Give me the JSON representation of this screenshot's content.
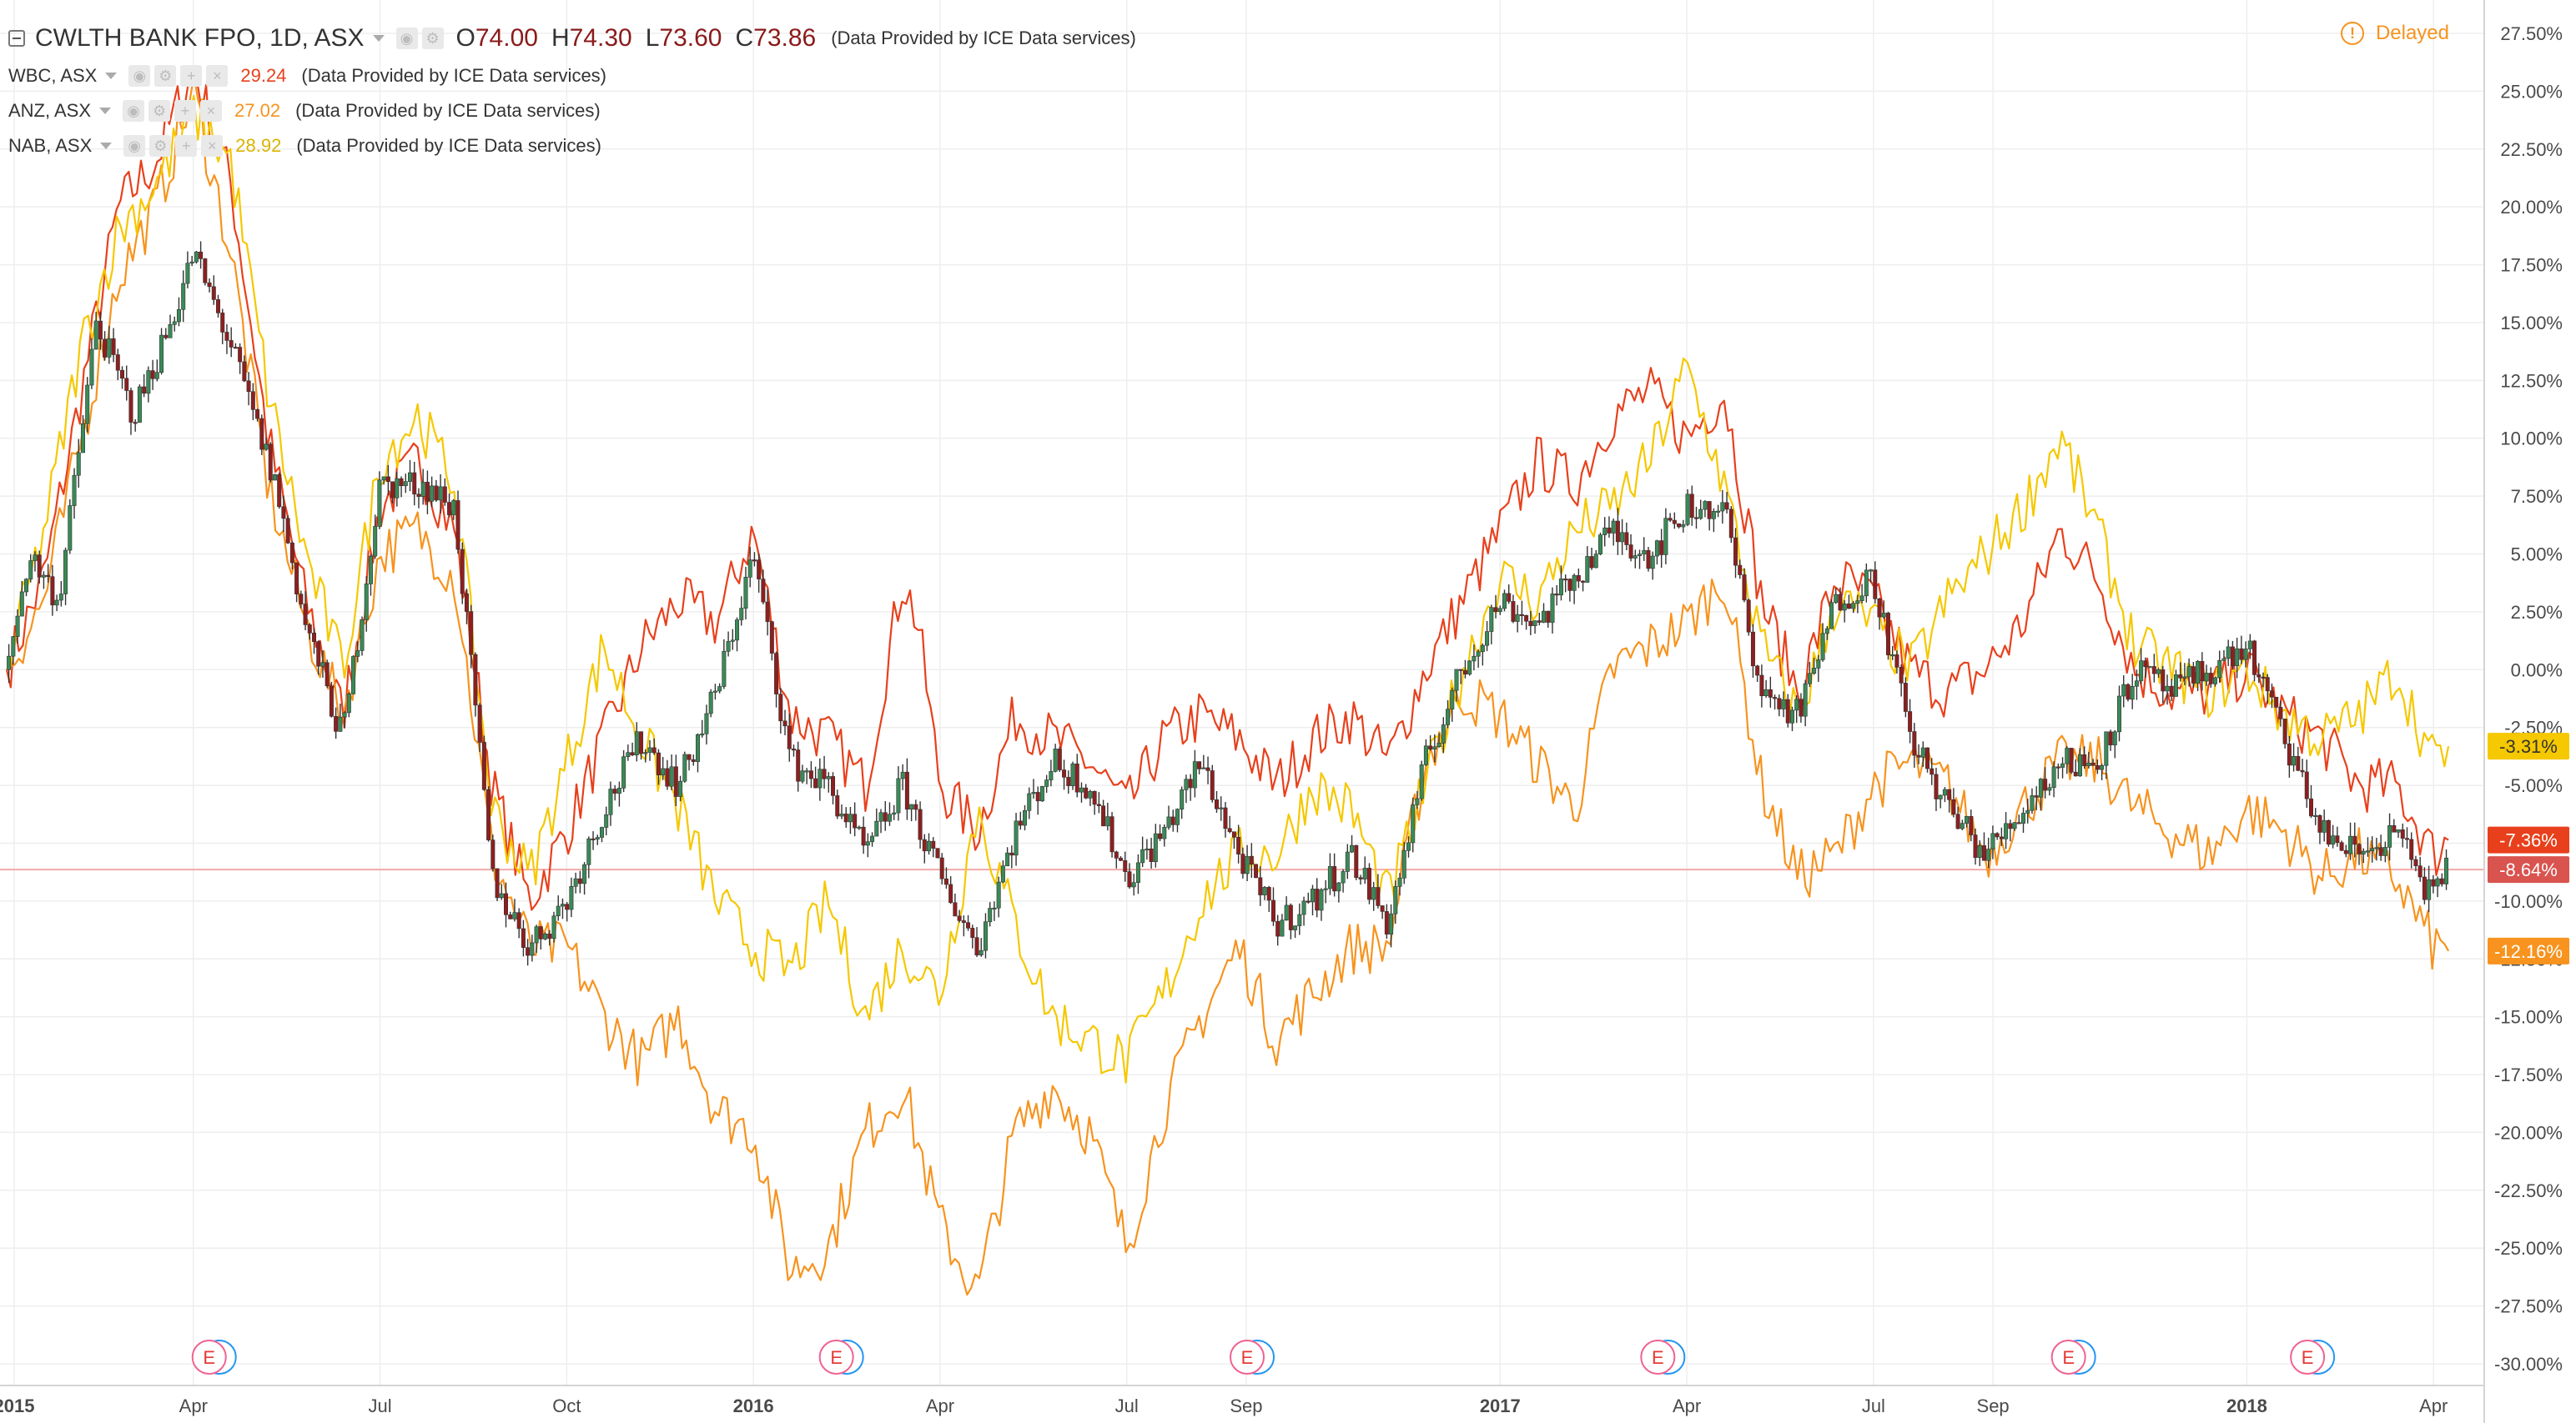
{
  "header": {
    "main": {
      "symbol": "CWLTH BANK FPO, 1D, ASX",
      "open_label": "O",
      "open": "74.00",
      "high_label": "H",
      "high": "74.30",
      "low_label": "L",
      "low": "73.60",
      "close_label": "C",
      "close": "73.86",
      "provider": "(Data Provided by ICE Data services)"
    },
    "comparisons": [
      {
        "symbol": "WBC, ASX",
        "value": "29.24",
        "color": "#e8401c",
        "provider": "(Data Provided by ICE Data services)"
      },
      {
        "symbol": "ANZ, ASX",
        "value": "27.02",
        "color": "#f7931e",
        "provider": "(Data Provided by ICE Data services)"
      },
      {
        "symbol": "NAB, ASX",
        "value": "28.92",
        "color": "#f5c800",
        "provider": "(Data Provided by ICE Data services)"
      }
    ],
    "delayed_label": "Delayed",
    "delayed_icon": "!"
  },
  "chart_data": {
    "type": "line",
    "ylim": [
      -30,
      27.5
    ],
    "y_ticks": [
      "27.50%",
      "25.00%",
      "22.50%",
      "20.00%",
      "17.50%",
      "15.00%",
      "12.50%",
      "10.00%",
      "7.50%",
      "5.00%",
      "2.50%",
      "0.00%",
      "-2.50%",
      "-5.00%",
      "-7.50%",
      "-10.00%",
      "-12.50%",
      "-15.00%",
      "-17.50%",
      "-20.00%",
      "-22.50%",
      "-25.00%",
      "-27.50%",
      "-30.00%"
    ],
    "x_ticks": [
      {
        "label": "2015",
        "t": 0.01,
        "bold": true
      },
      {
        "label": "Apr",
        "t": 0.25,
        "bold": false
      },
      {
        "label": "Jul",
        "t": 0.5,
        "bold": false
      },
      {
        "label": "Oct",
        "t": 0.75,
        "bold": false
      },
      {
        "label": "2016",
        "t": 1.0,
        "bold": true
      },
      {
        "label": "Apr",
        "t": 1.25,
        "bold": false
      },
      {
        "label": "Jul",
        "t": 1.5,
        "bold": false
      },
      {
        "label": "Sep",
        "t": 1.66,
        "bold": false
      },
      {
        "label": "2017",
        "t": 2.0,
        "bold": true
      },
      {
        "label": "Apr",
        "t": 2.25,
        "bold": false
      },
      {
        "label": "Jul",
        "t": 2.5,
        "bold": false
      },
      {
        "label": "Sep",
        "t": 2.66,
        "bold": false
      },
      {
        "label": "2018",
        "t": 3.0,
        "bold": true
      },
      {
        "label": "Apr",
        "t": 3.25,
        "bold": false
      }
    ],
    "current_level": -8.64,
    "series": [
      {
        "name": "CWLTH BANK FPO, 1D, ASX",
        "style": "candles",
        "label": "-8.64%",
        "last": -8.64,
        "label_color": "#d9534f",
        "points": [
          [
            0,
            0
          ],
          [
            0.03,
            5
          ],
          [
            0.07,
            3
          ],
          [
            0.12,
            15
          ],
          [
            0.17,
            11
          ],
          [
            0.22,
            15
          ],
          [
            0.25,
            18
          ],
          [
            0.3,
            14
          ],
          [
            0.36,
            8
          ],
          [
            0.4,
            2
          ],
          [
            0.45,
            -3
          ],
          [
            0.5,
            8
          ],
          [
            0.56,
            8
          ],
          [
            0.6,
            7
          ],
          [
            0.65,
            -9
          ],
          [
            0.7,
            -12
          ],
          [
            0.75,
            -10
          ],
          [
            0.8,
            -6
          ],
          [
            0.85,
            -3
          ],
          [
            0.9,
            -5
          ],
          [
            0.95,
            -1
          ],
          [
            1.0,
            5
          ],
          [
            1.05,
            -4
          ],
          [
            1.1,
            -5
          ],
          [
            1.15,
            -8
          ],
          [
            1.2,
            -5
          ],
          [
            1.25,
            -9
          ],
          [
            1.3,
            -12
          ],
          [
            1.35,
            -7
          ],
          [
            1.4,
            -4
          ],
          [
            1.45,
            -5
          ],
          [
            1.5,
            -9
          ],
          [
            1.55,
            -7
          ],
          [
            1.6,
            -4
          ],
          [
            1.65,
            -8
          ],
          [
            1.7,
            -11
          ],
          [
            1.75,
            -10
          ],
          [
            1.8,
            -8
          ],
          [
            1.85,
            -11
          ],
          [
            1.9,
            -4
          ],
          [
            1.95,
            0
          ],
          [
            2.0,
            3
          ],
          [
            2.05,
            2
          ],
          [
            2.1,
            4
          ],
          [
            2.15,
            6
          ],
          [
            2.2,
            5
          ],
          [
            2.25,
            7
          ],
          [
            2.3,
            7
          ],
          [
            2.35,
            -1
          ],
          [
            2.4,
            -2
          ],
          [
            2.45,
            3
          ],
          [
            2.5,
            4
          ],
          [
            2.55,
            -3
          ],
          [
            2.6,
            -6
          ],
          [
            2.65,
            -8
          ],
          [
            2.7,
            -6
          ],
          [
            2.75,
            -4
          ],
          [
            2.8,
            -4
          ],
          [
            2.85,
            0
          ],
          [
            2.9,
            -1
          ],
          [
            2.95,
            0
          ],
          [
            3.0,
            1
          ],
          [
            3.05,
            -3
          ],
          [
            3.1,
            -7
          ],
          [
            3.15,
            -8
          ],
          [
            3.2,
            -7
          ],
          [
            3.25,
            -10
          ],
          [
            3.27,
            -8.64
          ]
        ]
      },
      {
        "name": "WBC, ASX",
        "style": "line",
        "label": "-7.36%",
        "last": -7.36,
        "color": "#e8401c",
        "points": [
          [
            0,
            0
          ],
          [
            0.05,
            4
          ],
          [
            0.1,
            12
          ],
          [
            0.15,
            20
          ],
          [
            0.2,
            22
          ],
          [
            0.25,
            26
          ],
          [
            0.3,
            21
          ],
          [
            0.35,
            10
          ],
          [
            0.4,
            3
          ],
          [
            0.45,
            -2
          ],
          [
            0.5,
            7
          ],
          [
            0.55,
            9
          ],
          [
            0.6,
            6
          ],
          [
            0.65,
            -5
          ],
          [
            0.7,
            -10
          ],
          [
            0.75,
            -7
          ],
          [
            0.8,
            -3
          ],
          [
            0.85,
            1
          ],
          [
            0.9,
            3
          ],
          [
            0.95,
            2
          ],
          [
            1.0,
            6
          ],
          [
            1.05,
            -2
          ],
          [
            1.1,
            -3
          ],
          [
            1.15,
            -5
          ],
          [
            1.2,
            4
          ],
          [
            1.22,
            2
          ],
          [
            1.25,
            -5
          ],
          [
            1.3,
            -7
          ],
          [
            1.35,
            -2
          ],
          [
            1.4,
            -3
          ],
          [
            1.45,
            -4
          ],
          [
            1.5,
            -6
          ],
          [
            1.55,
            -3
          ],
          [
            1.6,
            -2
          ],
          [
            1.65,
            -3
          ],
          [
            1.7,
            -5
          ],
          [
            1.75,
            -3
          ],
          [
            1.8,
            -2
          ],
          [
            1.85,
            -4
          ],
          [
            1.9,
            0
          ],
          [
            1.95,
            3
          ],
          [
            2.0,
            6
          ],
          [
            2.05,
            9
          ],
          [
            2.1,
            8
          ],
          [
            2.15,
            11
          ],
          [
            2.2,
            12
          ],
          [
            2.25,
            10
          ],
          [
            2.3,
            12
          ],
          [
            2.35,
            3
          ],
          [
            2.4,
            -1
          ],
          [
            2.45,
            4
          ],
          [
            2.5,
            3
          ],
          [
            2.55,
            0
          ],
          [
            2.6,
            -1
          ],
          [
            2.65,
            0
          ],
          [
            2.7,
            2
          ],
          [
            2.75,
            6
          ],
          [
            2.8,
            4
          ],
          [
            2.85,
            0
          ],
          [
            2.9,
            -1
          ],
          [
            2.95,
            -1
          ],
          [
            3.0,
            0
          ],
          [
            3.05,
            -2
          ],
          [
            3.1,
            -3
          ],
          [
            3.15,
            -5
          ],
          [
            3.2,
            -5
          ],
          [
            3.25,
            -8
          ],
          [
            3.27,
            -7.36
          ]
        ]
      },
      {
        "name": "ANZ, ASX",
        "style": "line",
        "label": "-12.16%",
        "last": -12.16,
        "color": "#f7931e",
        "points": [
          [
            0,
            0
          ],
          [
            0.05,
            3
          ],
          [
            0.1,
            10
          ],
          [
            0.15,
            17
          ],
          [
            0.2,
            20
          ],
          [
            0.25,
            25
          ],
          [
            0.3,
            18
          ],
          [
            0.35,
            8
          ],
          [
            0.4,
            2
          ],
          [
            0.45,
            -2
          ],
          [
            0.5,
            5
          ],
          [
            0.55,
            6
          ],
          [
            0.6,
            4
          ],
          [
            0.65,
            -8
          ],
          [
            0.7,
            -12
          ],
          [
            0.75,
            -12
          ],
          [
            0.8,
            -15
          ],
          [
            0.85,
            -17
          ],
          [
            0.9,
            -15
          ],
          [
            0.95,
            -19
          ],
          [
            1.0,
            -20
          ],
          [
            1.05,
            -26
          ],
          [
            1.1,
            -25
          ],
          [
            1.15,
            -20
          ],
          [
            1.2,
            -18
          ],
          [
            1.25,
            -24
          ],
          [
            1.3,
            -27
          ],
          [
            1.35,
            -20
          ],
          [
            1.4,
            -18
          ],
          [
            1.45,
            -20
          ],
          [
            1.5,
            -25
          ],
          [
            1.55,
            -19
          ],
          [
            1.6,
            -15
          ],
          [
            1.65,
            -12
          ],
          [
            1.7,
            -16
          ],
          [
            1.75,
            -14
          ],
          [
            1.8,
            -12
          ],
          [
            1.85,
            -12
          ],
          [
            1.9,
            -4
          ],
          [
            1.95,
            -1
          ],
          [
            2.0,
            -2
          ],
          [
            2.05,
            -4
          ],
          [
            2.1,
            -6
          ],
          [
            2.15,
            0
          ],
          [
            2.2,
            1
          ],
          [
            2.25,
            2
          ],
          [
            2.3,
            4
          ],
          [
            2.35,
            -5
          ],
          [
            2.4,
            -9
          ],
          [
            2.45,
            -8
          ],
          [
            2.5,
            -5
          ],
          [
            2.55,
            -4
          ],
          [
            2.6,
            -5
          ],
          [
            2.65,
            -8
          ],
          [
            2.7,
            -6
          ],
          [
            2.75,
            -4
          ],
          [
            2.8,
            -4
          ],
          [
            2.85,
            -6
          ],
          [
            2.9,
            -7
          ],
          [
            2.95,
            -8
          ],
          [
            3.0,
            -6
          ],
          [
            3.05,
            -7
          ],
          [
            3.1,
            -9
          ],
          [
            3.15,
            -8
          ],
          [
            3.2,
            -9
          ],
          [
            3.25,
            -12
          ],
          [
            3.27,
            -12.16
          ]
        ]
      },
      {
        "name": "NAB, ASX",
        "style": "line",
        "label": "-3.31%",
        "last": -3.31,
        "color": "#f5c800",
        "points": [
          [
            0,
            0
          ],
          [
            0.05,
            6
          ],
          [
            0.1,
            14
          ],
          [
            0.15,
            19
          ],
          [
            0.2,
            21
          ],
          [
            0.25,
            24
          ],
          [
            0.3,
            22
          ],
          [
            0.35,
            12
          ],
          [
            0.4,
            5
          ],
          [
            0.45,
            0
          ],
          [
            0.5,
            9
          ],
          [
            0.55,
            11
          ],
          [
            0.6,
            8
          ],
          [
            0.65,
            -6
          ],
          [
            0.7,
            -9
          ],
          [
            0.75,
            -4
          ],
          [
            0.8,
            1
          ],
          [
            0.85,
            -3
          ],
          [
            0.9,
            -6
          ],
          [
            0.95,
            -10
          ],
          [
            1.0,
            -12
          ],
          [
            1.05,
            -13
          ],
          [
            1.1,
            -10
          ],
          [
            1.15,
            -15
          ],
          [
            1.2,
            -12
          ],
          [
            1.25,
            -14
          ],
          [
            1.3,
            -6
          ],
          [
            1.35,
            -11
          ],
          [
            1.4,
            -15
          ],
          [
            1.45,
            -16
          ],
          [
            1.5,
            -17
          ],
          [
            1.55,
            -14
          ],
          [
            1.6,
            -10
          ],
          [
            1.65,
            -8
          ],
          [
            1.7,
            -8
          ],
          [
            1.75,
            -5
          ],
          [
            1.8,
            -6
          ],
          [
            1.85,
            -10
          ],
          [
            1.9,
            -5
          ],
          [
            1.95,
            0
          ],
          [
            2.0,
            4
          ],
          [
            2.05,
            3
          ],
          [
            2.1,
            6
          ],
          [
            2.15,
            7
          ],
          [
            2.2,
            9
          ],
          [
            2.25,
            13
          ],
          [
            2.3,
            8
          ],
          [
            2.35,
            1
          ],
          [
            2.4,
            -2
          ],
          [
            2.45,
            3
          ],
          [
            2.5,
            2
          ],
          [
            2.55,
            0
          ],
          [
            2.6,
            3
          ],
          [
            2.65,
            5
          ],
          [
            2.7,
            7
          ],
          [
            2.75,
            10
          ],
          [
            2.8,
            6
          ],
          [
            2.85,
            1
          ],
          [
            2.9,
            0
          ],
          [
            2.95,
            -1
          ],
          [
            3.0,
            0
          ],
          [
            3.05,
            -2
          ],
          [
            3.1,
            -3
          ],
          [
            3.15,
            -2
          ],
          [
            3.2,
            0
          ],
          [
            3.25,
            -4
          ],
          [
            3.27,
            -3.31
          ]
        ]
      }
    ],
    "events": [
      {
        "t": 0.26,
        "label": "E"
      },
      {
        "t": 1.1,
        "label": "E"
      },
      {
        "t": 1.65,
        "label": "E"
      },
      {
        "t": 2.2,
        "label": "E"
      },
      {
        "t": 2.75,
        "label": "E"
      },
      {
        "t": 3.07,
        "label": "E"
      }
    ]
  }
}
